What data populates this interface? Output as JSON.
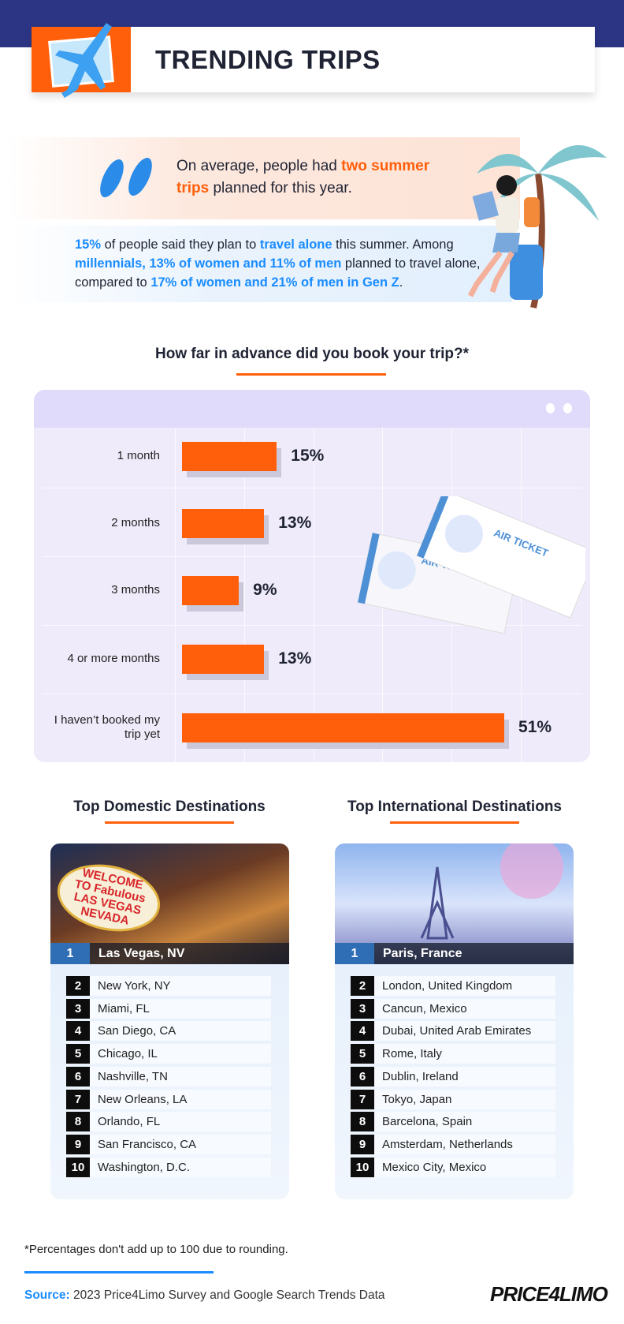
{
  "header": {
    "title": "TRENDING TRIPS"
  },
  "intro": {
    "line1_pre": "On average, people had ",
    "line1_highlight": "two summer trips",
    "line1_post": " planned for this year.",
    "p2_a": "15%",
    "p2_b": " of people said they plan to ",
    "p2_c": "travel alone",
    "p2_d": " this summer. Among ",
    "p2_e": "millennials, 13% of women and 11% of men",
    "p2_f": " planned to travel alone, compared to ",
    "p2_g": "17% of women and 21% of men in Gen Z",
    "p2_h": "."
  },
  "chart_data": {
    "type": "bar",
    "title": "How far in advance did you book your trip?*",
    "categories": [
      "1 month",
      "2 months",
      "3 months",
      "4 or more months",
      "I haven’t booked my trip yet"
    ],
    "values": [
      15,
      13,
      9,
      13,
      51
    ],
    "labels": [
      "15%",
      "13%",
      "9%",
      "13%",
      "51%"
    ],
    "bar_color": "#ff5f0a",
    "orientation": "horizontal",
    "decoration_text": [
      "AIR TICKET",
      "AIR TICKET"
    ]
  },
  "domestic": {
    "heading": "Top Domestic Destinations",
    "items": [
      {
        "rank": "1",
        "city": "Las Vegas, NV"
      },
      {
        "rank": "2",
        "city": "New York, NY"
      },
      {
        "rank": "3",
        "city": "Miami, FL"
      },
      {
        "rank": "4",
        "city": "San Diego, CA"
      },
      {
        "rank": "5",
        "city": "Chicago, IL"
      },
      {
        "rank": "6",
        "city": "Nashville, TN"
      },
      {
        "rank": "7",
        "city": "New Orleans, LA"
      },
      {
        "rank": "8",
        "city": "Orlando, FL"
      },
      {
        "rank": "9",
        "city": "San Francisco, CA"
      },
      {
        "rank": "10",
        "city": "Washington, D.C."
      }
    ],
    "image_sign_text": "WELCOME TO Fabulous LAS VEGAS NEVADA"
  },
  "international": {
    "heading": "Top International Destinations",
    "items": [
      {
        "rank": "1",
        "city": "Paris, France"
      },
      {
        "rank": "2",
        "city": "London, United Kingdom"
      },
      {
        "rank": "3",
        "city": "Cancun, Mexico"
      },
      {
        "rank": "4",
        "city": "Dubai, United Arab Emirates"
      },
      {
        "rank": "5",
        "city": "Rome, Italy"
      },
      {
        "rank": "6",
        "city": "Dublin, Ireland"
      },
      {
        "rank": "7",
        "city": "Tokyo, Japan"
      },
      {
        "rank": "8",
        "city": "Barcelona, Spain"
      },
      {
        "rank": "9",
        "city": "Amsterdam, Netherlands"
      },
      {
        "rank": "10",
        "city": "Mexico City, Mexico"
      }
    ]
  },
  "footer": {
    "footnote": "*Percentages don't add up to 100 due to rounding.",
    "source_label": "Source:",
    "source_text": " 2023 Price4Limo Survey and Google Search Trends Data",
    "logo": "PRICE4LIMO"
  },
  "colors": {
    "navy": "#2c3584",
    "orange": "#ff5f0a",
    "blue": "#1a8cff"
  }
}
